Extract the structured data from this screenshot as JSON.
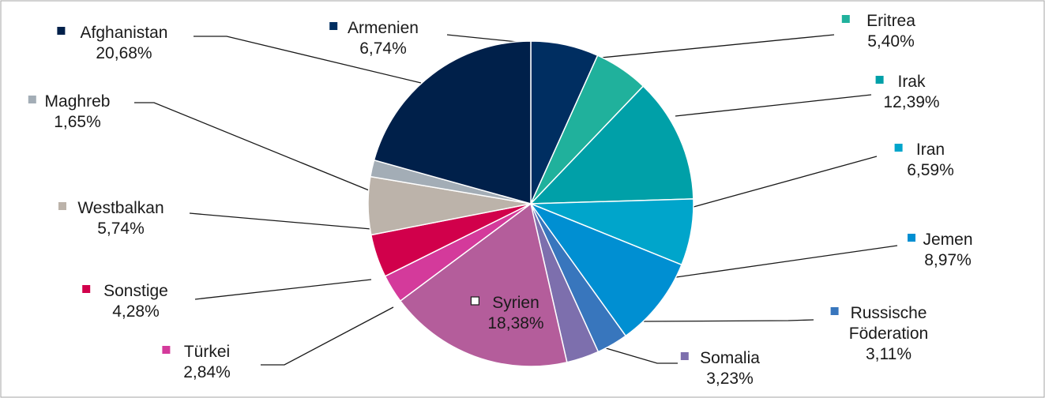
{
  "chart_data": {
    "type": "pie",
    "title": "",
    "slices": [
      {
        "name": "Armenien",
        "value": 6.74,
        "label": "6,74%",
        "color": "#002e61"
      },
      {
        "name": "Eritrea",
        "value": 5.4,
        "label": "5,40%",
        "color": "#20b19c"
      },
      {
        "name": "Irak",
        "value": 12.39,
        "label": "12,39%",
        "color": "#00a0a8"
      },
      {
        "name": "Iran",
        "value": 6.59,
        "label": "6,59%",
        "color": "#00a5cb"
      },
      {
        "name": "Jemen",
        "value": 8.97,
        "label": "8,97%",
        "color": "#008fd2"
      },
      {
        "name": "Russische Föderation",
        "name_lines": [
          "Russische",
          "Föderation"
        ],
        "value": 3.11,
        "label": "3,11%",
        "color": "#3876bd"
      },
      {
        "name": "Somalia",
        "value": 3.23,
        "label": "3,23%",
        "color": "#7d6fad"
      },
      {
        "name": "Syrien",
        "value": 18.38,
        "label": "18,38%",
        "color": "#b45d9b"
      },
      {
        "name": "Türkei",
        "value": 2.84,
        "label": "2,84%",
        "color": "#d43a9b"
      },
      {
        "name": "Sonstige",
        "value": 4.28,
        "label": "4,28%",
        "color": "#d1004b"
      },
      {
        "name": "Westbalkan",
        "value": 5.74,
        "label": "5,74%",
        "color": "#bcb3aa"
      },
      {
        "name": "Maghreb",
        "value": 1.65,
        "label": "1,65%",
        "color": "#a3adb6"
      },
      {
        "name": "Afghanistan",
        "value": 20.68,
        "label": "20,68%",
        "color": "#00204a"
      }
    ],
    "start": "12 o'clock",
    "direction": "clockwise",
    "legend": "none"
  }
}
